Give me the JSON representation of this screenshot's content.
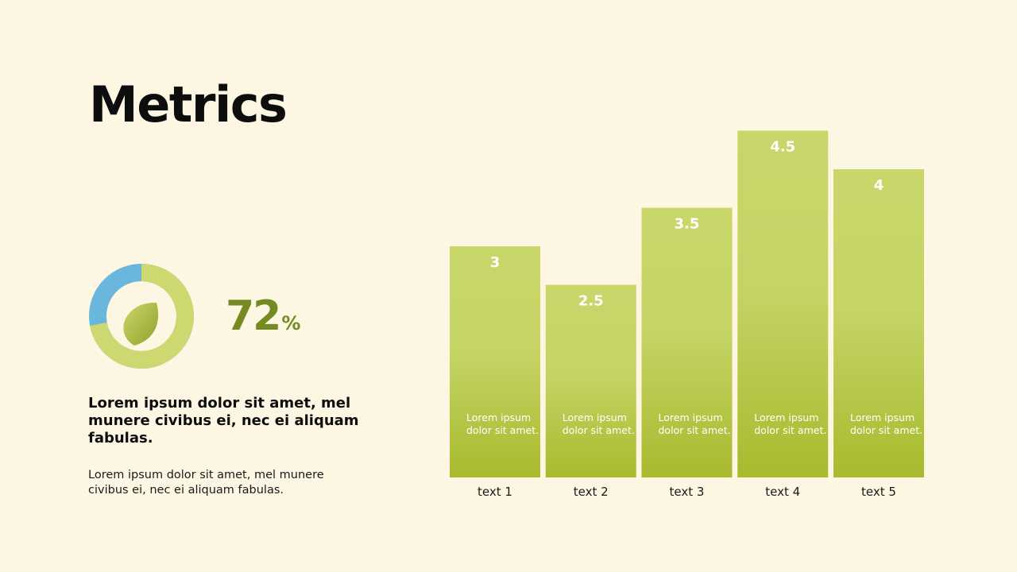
{
  "slide": {
    "title": "Metrics",
    "percent_value": "72",
    "percent_sign": "%",
    "heading": "Lorem ipsum dolor sit amet, mel munere civibus ei, nec ei aliquam fabulas.",
    "body": "Lorem ipsum dolor sit amet, mel munere civibus ei, nec ei aliquam fabulas."
  },
  "donut": {
    "fraction": 0.72,
    "primary_color": "#cdd870",
    "secondary_color": "#6ab7de",
    "leaf_icon": "leaf-icon"
  },
  "colors": {
    "background": "#fdf6e3",
    "bar_top": "#c9d76a",
    "bar_bottom": "#a8ba2e",
    "accent_text": "#758a22"
  },
  "chart_data": {
    "type": "bar",
    "categories": [
      "text 1",
      "text 2",
      "text 3",
      "text 4",
      "text 5"
    ],
    "values": [
      3,
      2.5,
      3.5,
      4.5,
      4
    ],
    "value_labels": [
      "3",
      "2.5",
      "3.5",
      "4.5",
      "4"
    ],
    "bar_text": "Lorem ipsum dolor sit amet.",
    "title": "",
    "xlabel": "",
    "ylabel": "",
    "grid": false
  }
}
